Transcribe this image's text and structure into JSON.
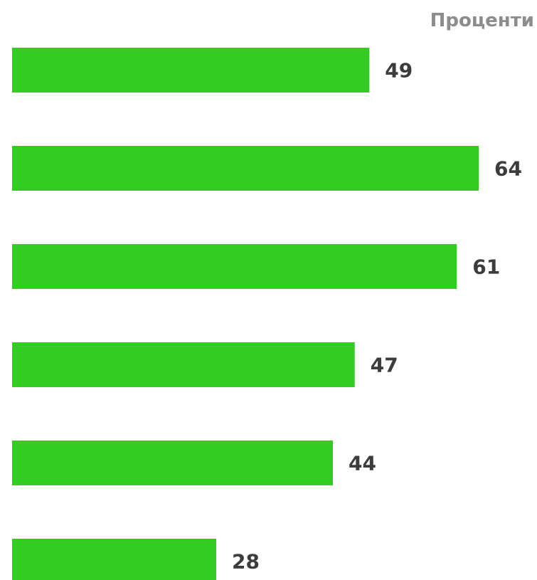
{
  "chart_data": {
    "type": "bar",
    "orientation": "horizontal",
    "unit_label": "Проценти",
    "categories": [
      "",
      "",
      "",
      "",
      "",
      ""
    ],
    "values": [
      49,
      64,
      61,
      47,
      44,
      28
    ],
    "value_labels": [
      "49",
      "64",
      "61",
      "47",
      "44",
      "28"
    ],
    "xlim": [
      0,
      64
    ],
    "bar_color": "#33cc22",
    "grid": false,
    "legend": "none"
  }
}
